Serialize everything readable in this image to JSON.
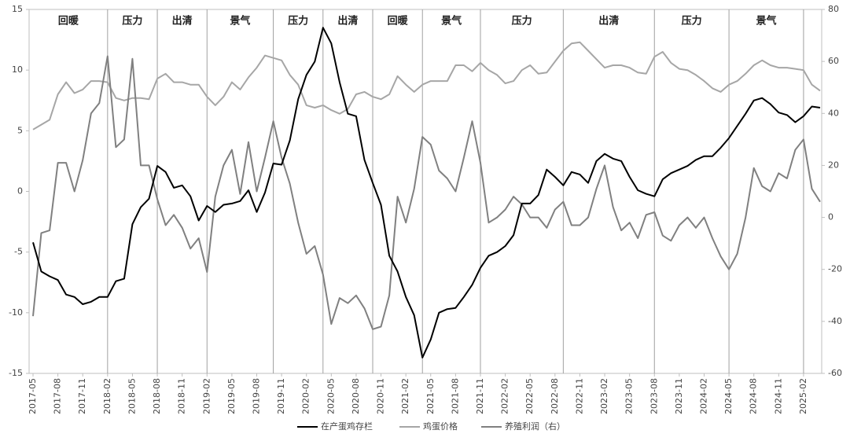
{
  "chart_data": {
    "type": "line",
    "categories": [
      "2017-05",
      null,
      null,
      "2017-08",
      null,
      null,
      "2017-11",
      null,
      null,
      "2018-02",
      null,
      null,
      "2018-05",
      null,
      null,
      "2018-08",
      null,
      null,
      "2018-11",
      null,
      null,
      "2019-02",
      null,
      null,
      "2019-05",
      null,
      null,
      "2019-08",
      null,
      null,
      "2019-11",
      null,
      null,
      "2020-02",
      null,
      null,
      "2020-05",
      null,
      null,
      "2020-08",
      null,
      null,
      "2020-11",
      null,
      null,
      "2021-02",
      null,
      null,
      "2021-05",
      null,
      null,
      "2021-08",
      null,
      null,
      "2021-11",
      null,
      null,
      "2022-02",
      null,
      null,
      "2022-05",
      null,
      null,
      "2022-08",
      null,
      null,
      "2022-11",
      null,
      null,
      "2023-02",
      null,
      null,
      "2023-05",
      null,
      null,
      "2023-08",
      null,
      null,
      "2023-11",
      null,
      null,
      "2024-02",
      null,
      null,
      "2024-05",
      null,
      null,
      "2024-08",
      null,
      null,
      "2024-11",
      null,
      null,
      "2025-02",
      null,
      null
    ],
    "series": [
      {
        "name": "在产蛋鸡存栏",
        "color": "#000000",
        "values": [
          -4.2,
          -6.6,
          -7.0,
          -7.3,
          -8.5,
          -8.7,
          -9.3,
          -9.1,
          -8.7,
          -8.7,
          -7.4,
          -7.2,
          -2.7,
          -1.3,
          -0.6,
          2.1,
          1.6,
          0.3,
          0.5,
          -0.4,
          -2.4,
          -1.2,
          -1.7,
          -1.1,
          -1.0,
          -0.8,
          0.1,
          -1.7,
          -0.1,
          2.3,
          2.2,
          4.2,
          7.6,
          9.6,
          10.7,
          13.5,
          12.2,
          9.0,
          6.4,
          6.2,
          2.6,
          0.7,
          -1.1,
          -5.3,
          -6.6,
          -8.7,
          -10.2,
          -13.7,
          -12.2,
          -10.0,
          -9.7,
          -9.6,
          -8.7,
          -7.7,
          -6.3,
          -5.3,
          -5.0,
          -4.5,
          -3.6,
          -1.0,
          -1.0,
          -0.3,
          1.8,
          1.2,
          0.5,
          1.6,
          1.4,
          0.7,
          2.5,
          3.1,
          2.7,
          2.5,
          1.2,
          0.1,
          -0.2,
          -0.4,
          1.0,
          1.5,
          1.8,
          2.1,
          2.6,
          2.9,
          2.9,
          3.6,
          4.4,
          5.4,
          6.4,
          7.5,
          7.7,
          7.2,
          6.5,
          6.3,
          5.7,
          6.2,
          7.0,
          6.9
        ]
      },
      {
        "name": "鸡蛋价格",
        "color": "#a6a6a6",
        "values": [
          5.1,
          5.5,
          5.9,
          8.0,
          9.0,
          8.1,
          8.4,
          9.1,
          9.1,
          9.0,
          7.7,
          7.5,
          7.7,
          7.7,
          7.6,
          9.3,
          9.7,
          9.0,
          9.0,
          8.8,
          8.8,
          7.8,
          7.1,
          7.8,
          9.0,
          8.4,
          9.4,
          10.2,
          11.2,
          11.0,
          10.8,
          9.6,
          8.8,
          7.1,
          6.9,
          7.1,
          6.7,
          6.4,
          6.8,
          8.0,
          8.2,
          7.8,
          7.6,
          8.0,
          9.5,
          8.8,
          8.2,
          8.8,
          9.1,
          9.1,
          9.1,
          10.4,
          10.4,
          9.9,
          10.6,
          10.0,
          9.6,
          8.9,
          9.1,
          10.0,
          10.4,
          9.7,
          9.8,
          10.7,
          11.6,
          12.2,
          12.3,
          11.6,
          10.9,
          10.2,
          10.4,
          10.4,
          10.2,
          9.8,
          9.7,
          11.1,
          11.5,
          10.6,
          10.1,
          10.0,
          9.6,
          9.1,
          8.5,
          8.2,
          8.8,
          9.1,
          9.7,
          10.4,
          10.8,
          10.4,
          10.2,
          10.2,
          10.1,
          10.0,
          8.8,
          8.3
        ]
      },
      {
        "name": "养殖利润（右）",
        "color": "#808080",
        "axis": "y2",
        "values": [
          -38,
          -6,
          -5,
          21,
          21,
          10,
          22,
          40,
          44,
          62,
          27,
          30,
          61,
          20,
          20,
          7,
          -3,
          1,
          -4,
          -12,
          -8,
          -21,
          8,
          20,
          26,
          9,
          29,
          10,
          23,
          37,
          23,
          13,
          -2,
          -14,
          -11,
          -22,
          -41,
          -31,
          -33,
          -30,
          -35,
          -43,
          -42,
          -30,
          8,
          -2,
          11,
          31,
          28,
          18,
          15,
          10,
          23,
          37,
          21,
          -2,
          0,
          3,
          8,
          5,
          0,
          0,
          -4,
          3,
          6,
          -3,
          -3,
          0,
          11,
          20,
          4,
          -5,
          -2,
          -8,
          1,
          2,
          -7,
          -9,
          -3,
          0,
          -4,
          0,
          -8,
          -15,
          -20,
          -14,
          0,
          19,
          12,
          10,
          17,
          15,
          26,
          30,
          11,
          6
        ]
      }
    ],
    "ylim": [
      -15,
      15
    ],
    "yticks": [
      -15,
      -10,
      -5,
      0,
      5,
      10,
      15
    ],
    "y2lim": [
      -60,
      80
    ],
    "y2ticks": [
      -60,
      -40,
      -20,
      0,
      20,
      40,
      60,
      80
    ],
    "phases": [
      "回暖",
      "压力",
      "出清",
      "景气",
      "压力",
      "出清",
      "回暖",
      "景气",
      "压力",
      "出清",
      "压力",
      "景气"
    ],
    "phase_boundaries": [
      9,
      15,
      21,
      29,
      35,
      41,
      47,
      54,
      64,
      75,
      84,
      93
    ]
  }
}
